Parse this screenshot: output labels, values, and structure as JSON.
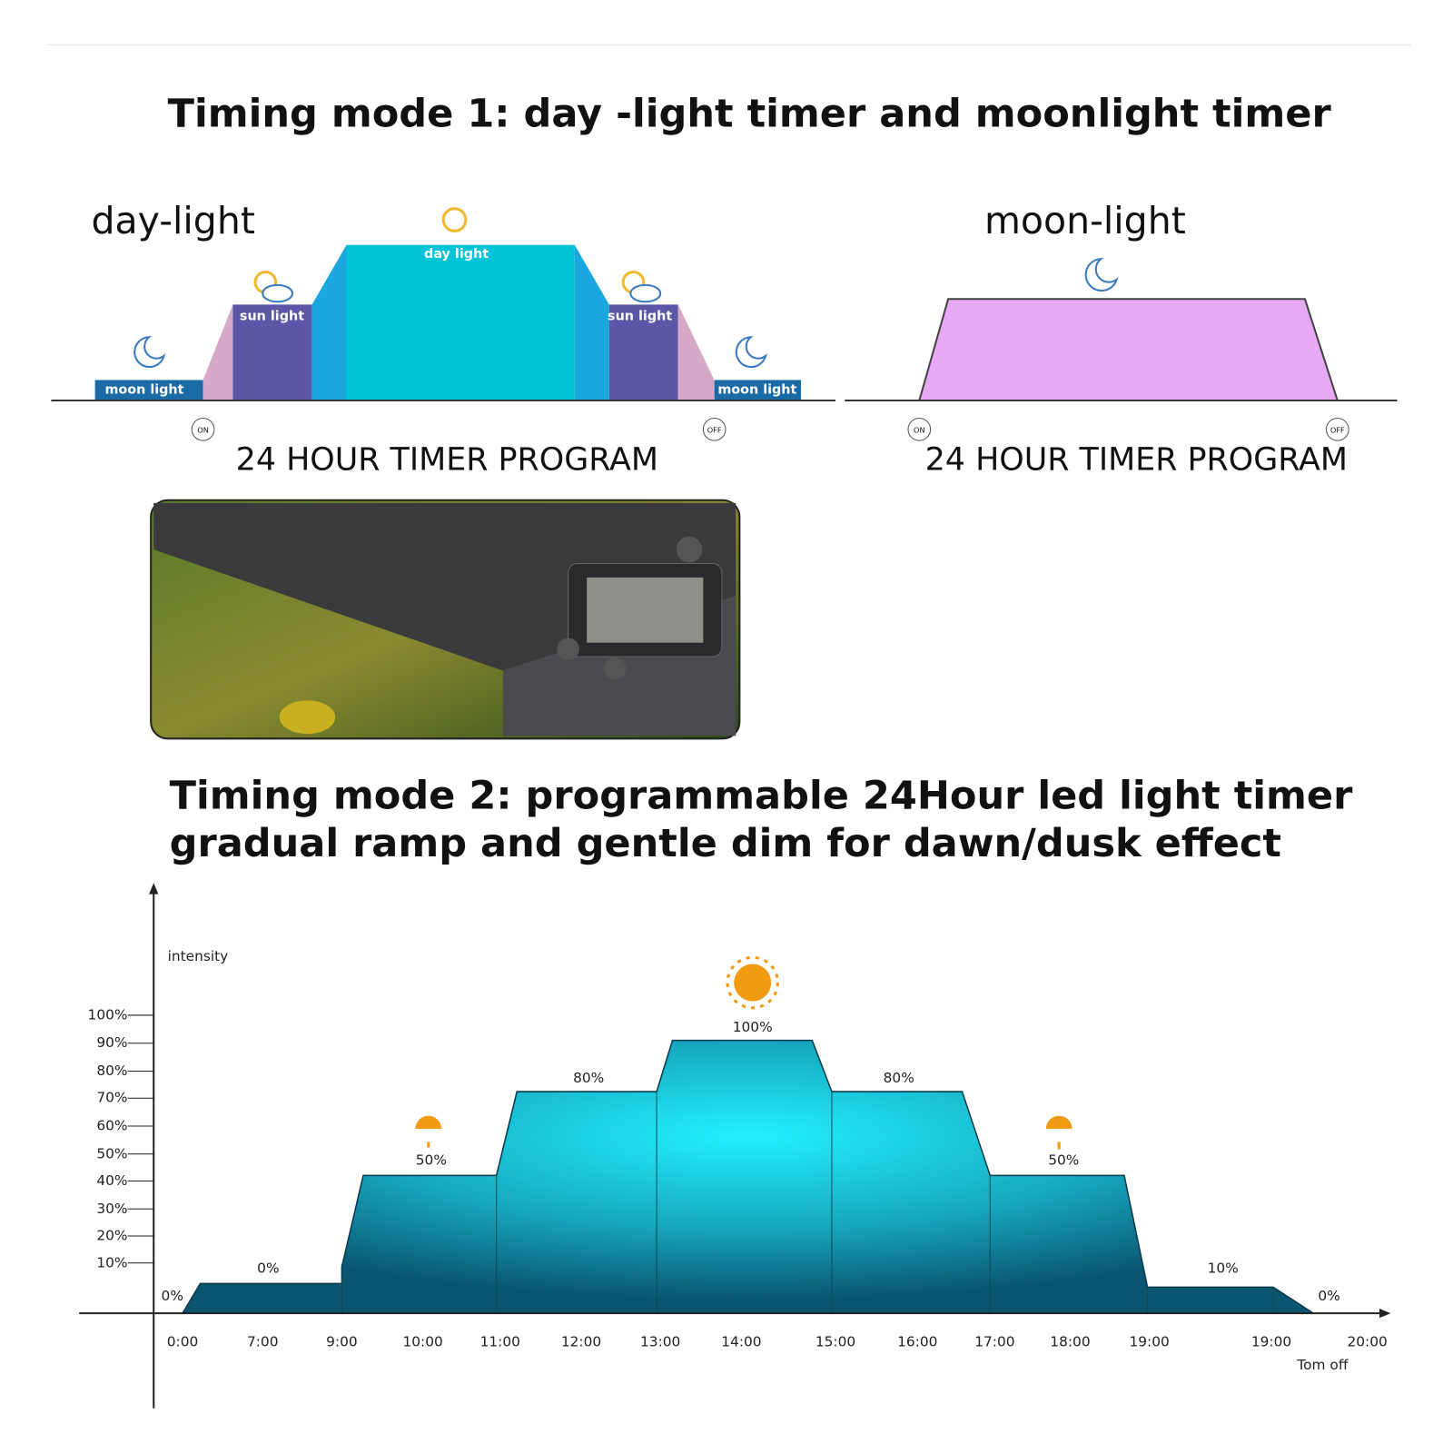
{
  "mode1": {
    "title": "Timing mode 1: day -light timer and moonlight timer",
    "daylight": {
      "label": "day-light",
      "phases": [
        "moon light",
        "sun light",
        "day light",
        "sun light",
        "moon light"
      ],
      "on": "ON",
      "off": "OFF",
      "caption": "24 HOUR TIMER PROGRAM"
    },
    "moonlight": {
      "label": "moon-light",
      "on": "ON",
      "off": "OFF",
      "caption": "24 HOUR TIMER PROGRAM"
    }
  },
  "mode2": {
    "title_lines": [
      "Timing mode 2: programmable 24Hour led light timer",
      "gradual ramp and gentle dim for dawn/dusk effect"
    ],
    "chart": {
      "axis_label": "intensity",
      "yticks": [
        "100%",
        "90%",
        "80%",
        "70%",
        "60%",
        "50%",
        "40%",
        "30%",
        "20%",
        "10%"
      ],
      "xticks": [
        "0:00",
        "7:00",
        "9:00",
        "10:00",
        "11:00",
        "12:00",
        "13:00",
        "14:00",
        "15:00",
        "16:00",
        "17:00",
        "18:00",
        "19:00",
        "19:00",
        "20:00"
      ],
      "level_labels": [
        "0%",
        "0%",
        "50%",
        "80%",
        "100%",
        "80%",
        "50%",
        "10%",
        "0%"
      ],
      "end_note": "Tom off"
    }
  }
}
